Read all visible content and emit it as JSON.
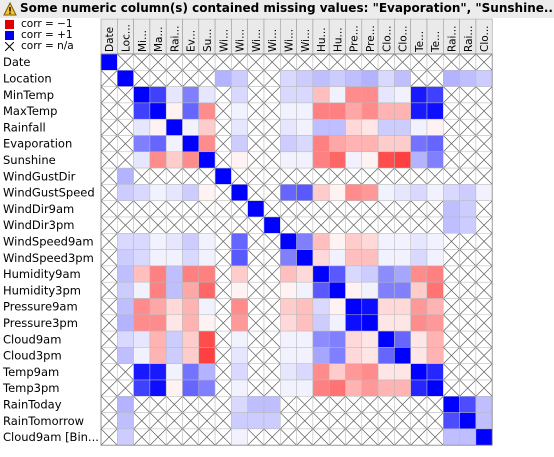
{
  "warning": {
    "icon": "warning-triangle-icon",
    "text": "Some numeric column(s) contained missing values: \"Evaporation\", \"Sunshine..."
  },
  "legend": {
    "items": [
      {
        "label": "corr = −1",
        "color": "#e00000",
        "pattern": "solid"
      },
      {
        "label": "corr = +1",
        "color": "#0000ee",
        "pattern": "solid"
      },
      {
        "label": "corr = n/a",
        "color": "#000000",
        "pattern": "cross"
      }
    ]
  },
  "chart_data": {
    "type": "heatmap",
    "title": "",
    "color_scale": {
      "min": -1,
      "min_color": "#ff0000",
      "max": 1,
      "max_color": "#0000ff"
    },
    "labels": [
      "Date",
      "Location",
      "MinTemp",
      "MaxTemp",
      "Rainfall",
      "Evaporation",
      "Sunshine",
      "WindGustDir",
      "WindGustSpeed",
      "WindDir9am",
      "WindDir3pm",
      "WindSpeed9am",
      "WindSpeed3pm",
      "Humidity9am",
      "Humidity3pm",
      "Pressure9am",
      "Pressure3pm",
      "Cloud9am",
      "Cloud3pm",
      "Temp9am",
      "Temp3pm",
      "RainToday",
      "RainTomorrow",
      "Cloud9am [Bin..."
    ],
    "column_labels": [
      "Date",
      "Loc...",
      "Mi...",
      "Ma...",
      "Rai...",
      "Ev...",
      "Su...",
      "Wi...",
      "Wi...",
      "Wi...",
      "Wi...",
      "Wi...",
      "Wi...",
      "Hu...",
      "Hu...",
      "Pre...",
      "Pre...",
      "Clo...",
      "Clo...",
      "Te...",
      "Te...",
      "Rai...",
      "Rai...",
      "Clo..."
    ],
    "values": [
      [
        1,
        null,
        null,
        null,
        null,
        null,
        null,
        null,
        null,
        null,
        null,
        null,
        null,
        null,
        null,
        null,
        null,
        null,
        null,
        null,
        null,
        null,
        null,
        null
      ],
      [
        null,
        1,
        null,
        null,
        null,
        null,
        null,
        0.3,
        0.2,
        null,
        null,
        0.15,
        0.2,
        0.25,
        0.2,
        0.25,
        0.3,
        0.15,
        0.25,
        null,
        null,
        0.3,
        0.25,
        0.2
      ],
      [
        null,
        null,
        1,
        0.75,
        0.1,
        0.5,
        0.1,
        null,
        0.15,
        null,
        null,
        0.15,
        0.15,
        -0.25,
        0.05,
        -0.45,
        -0.45,
        0.1,
        0.05,
        0.9,
        0.75,
        null,
        null,
        null
      ],
      [
        null,
        null,
        0.75,
        1,
        -0.05,
        0.6,
        -0.45,
        null,
        0.05,
        null,
        null,
        0.05,
        0.05,
        -0.5,
        -0.5,
        -0.35,
        -0.45,
        -0.3,
        -0.3,
        0.9,
        0.95,
        null,
        null,
        null
      ],
      [
        null,
        null,
        0.1,
        -0.05,
        1,
        0.05,
        -0.2,
        null,
        0.1,
        null,
        null,
        0.1,
        0.05,
        0.25,
        0.25,
        -0.15,
        -0.1,
        0.2,
        0.2,
        0.05,
        -0.05,
        null,
        null,
        null
      ],
      [
        null,
        null,
        0.5,
        0.6,
        0.05,
        1,
        -0.45,
        null,
        0.2,
        null,
        null,
        0.2,
        0.15,
        -0.5,
        -0.35,
        -0.3,
        -0.3,
        -0.2,
        -0.2,
        0.55,
        0.6,
        null,
        null,
        null
      ],
      [
        null,
        null,
        0.1,
        -0.45,
        -0.2,
        -0.45,
        1,
        null,
        -0.05,
        null,
        null,
        0.05,
        0.05,
        -0.5,
        -0.6,
        0.05,
        -0.05,
        -0.7,
        -0.75,
        0.3,
        0.5,
        null,
        null,
        null
      ],
      [
        null,
        0.3,
        null,
        null,
        null,
        null,
        null,
        1,
        null,
        null,
        null,
        null,
        null,
        null,
        null,
        null,
        null,
        null,
        null,
        null,
        null,
        null,
        null,
        null
      ],
      [
        null,
        0.2,
        0.15,
        0.05,
        0.1,
        0.2,
        -0.05,
        null,
        1,
        null,
        null,
        0.6,
        0.65,
        -0.2,
        -0.05,
        -0.45,
        -0.4,
        0.05,
        0.1,
        0.15,
        0.05,
        0.15,
        0.2,
        0.05
      ],
      [
        null,
        null,
        null,
        null,
        null,
        null,
        null,
        null,
        null,
        1,
        null,
        null,
        null,
        null,
        null,
        null,
        null,
        null,
        null,
        null,
        null,
        0.25,
        0.2,
        null
      ],
      [
        null,
        null,
        null,
        null,
        null,
        null,
        null,
        null,
        null,
        null,
        1,
        null,
        null,
        null,
        null,
        null,
        null,
        null,
        null,
        null,
        null,
        0.25,
        0.2,
        null
      ],
      [
        null,
        0.15,
        0.15,
        0.05,
        0.1,
        0.2,
        0.05,
        null,
        0.6,
        null,
        null,
        1,
        0.5,
        -0.25,
        -0.05,
        -0.2,
        -0.15,
        0.05,
        0.05,
        0.1,
        0.05,
        null,
        null,
        null
      ],
      [
        null,
        0.2,
        0.15,
        0.05,
        0.05,
        0.15,
        0.05,
        null,
        0.65,
        null,
        null,
        0.5,
        1,
        -0.15,
        0.05,
        -0.25,
        -0.25,
        0.05,
        0.05,
        0.15,
        0.05,
        null,
        null,
        null
      ],
      [
        null,
        0.25,
        -0.25,
        -0.5,
        0.25,
        -0.5,
        -0.5,
        null,
        -0.2,
        null,
        null,
        -0.25,
        -0.15,
        1,
        0.65,
        0.15,
        0.2,
        0.45,
        0.35,
        -0.45,
        -0.5,
        null,
        null,
        null
      ],
      [
        null,
        0.2,
        0.05,
        -0.5,
        0.25,
        -0.35,
        -0.6,
        null,
        -0.05,
        null,
        null,
        -0.05,
        0.05,
        0.65,
        1,
        -0.05,
        0.05,
        0.5,
        0.5,
        -0.2,
        -0.55,
        null,
        null,
        null
      ],
      [
        null,
        0.25,
        -0.45,
        -0.35,
        -0.15,
        -0.3,
        0.05,
        null,
        -0.45,
        null,
        null,
        -0.2,
        -0.25,
        0.15,
        -0.05,
        1,
        0.95,
        -0.15,
        -0.15,
        -0.4,
        -0.3,
        null,
        null,
        null
      ],
      [
        null,
        0.3,
        -0.45,
        -0.45,
        -0.1,
        -0.3,
        -0.05,
        null,
        -0.4,
        null,
        null,
        -0.15,
        -0.25,
        0.2,
        0.05,
        0.95,
        1,
        -0.1,
        -0.1,
        -0.45,
        -0.4,
        null,
        null,
        null
      ],
      [
        null,
        0.15,
        0.1,
        -0.3,
        0.2,
        -0.2,
        -0.7,
        null,
        0.05,
        null,
        null,
        0.05,
        0.05,
        0.45,
        0.5,
        -0.15,
        -0.1,
        1,
        0.6,
        -0.1,
        -0.3,
        null,
        null,
        null
      ],
      [
        null,
        0.25,
        0.05,
        -0.3,
        0.2,
        -0.2,
        -0.75,
        null,
        0.1,
        null,
        null,
        0.05,
        0.05,
        0.35,
        0.5,
        -0.15,
        -0.1,
        0.6,
        1,
        -0.1,
        -0.3,
        null,
        null,
        null
      ],
      [
        null,
        null,
        0.9,
        0.9,
        0.05,
        0.55,
        0.3,
        null,
        0.15,
        null,
        null,
        0.1,
        0.15,
        -0.45,
        -0.2,
        -0.4,
        -0.45,
        -0.1,
        -0.1,
        1,
        0.85,
        null,
        null,
        null
      ],
      [
        null,
        null,
        0.75,
        0.95,
        -0.05,
        0.6,
        0.5,
        null,
        0.05,
        null,
        null,
        0.05,
        0.05,
        -0.5,
        -0.55,
        -0.3,
        -0.4,
        -0.3,
        -0.3,
        0.85,
        1,
        null,
        null,
        null
      ],
      [
        null,
        0.3,
        null,
        null,
        null,
        null,
        null,
        null,
        0.15,
        0.25,
        0.25,
        null,
        null,
        null,
        null,
        null,
        null,
        null,
        null,
        null,
        null,
        1,
        0.7,
        0.25
      ],
      [
        null,
        0.25,
        null,
        null,
        null,
        null,
        null,
        null,
        0.2,
        0.2,
        0.2,
        null,
        null,
        null,
        null,
        null,
        null,
        null,
        null,
        null,
        null,
        0.7,
        1,
        0.25
      ],
      [
        null,
        0.2,
        null,
        null,
        null,
        null,
        null,
        null,
        0.05,
        null,
        null,
        null,
        null,
        null,
        null,
        null,
        null,
        null,
        null,
        null,
        null,
        0.25,
        0.25,
        1
      ]
    ]
  }
}
